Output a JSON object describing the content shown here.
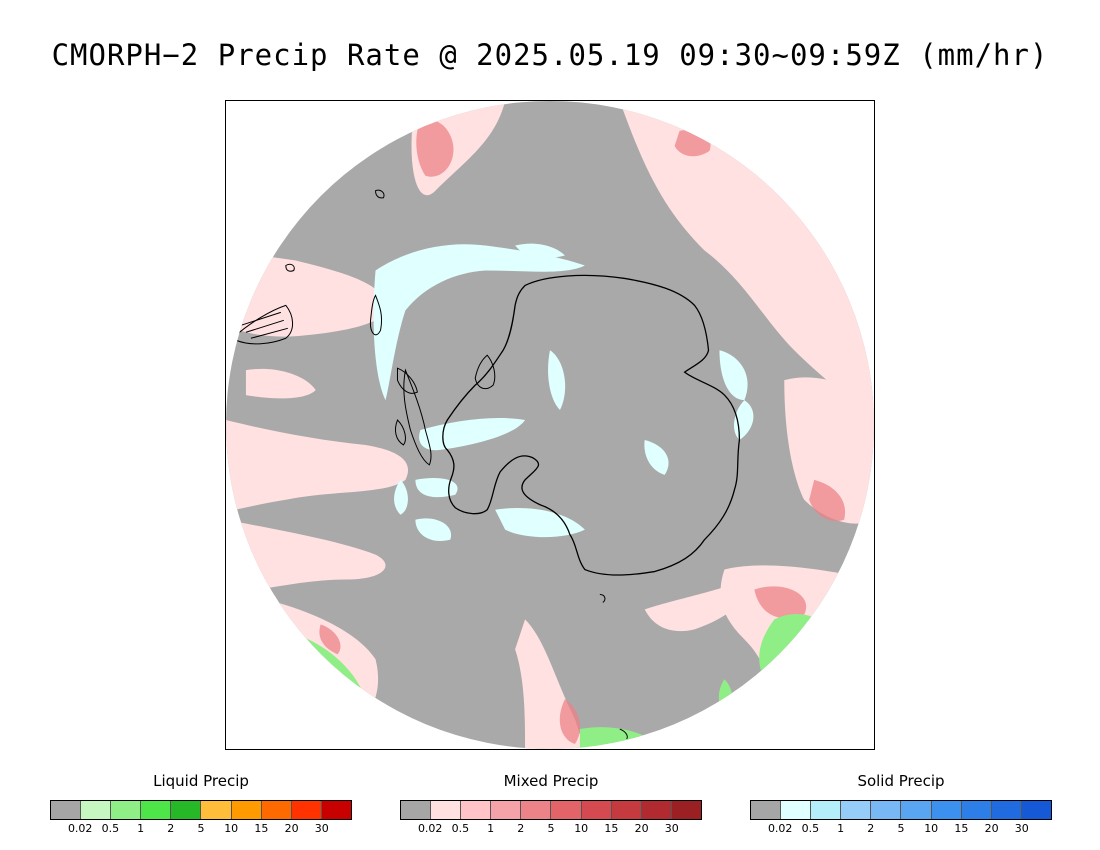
{
  "title": "CMORPH−2 Precip Rate @ 2025.05.19 09:30~09:59Z (mm/hr)",
  "map": {
    "projection": "south-polar-stereographic",
    "base_color": "#a9a9a9",
    "frame_color": "#000000",
    "coastline_color": "#000000"
  },
  "legends": [
    {
      "id": "liquid",
      "title": "Liquid Precip",
      "colors": [
        "#a6a6a6",
        "#c7f7c0",
        "#90ee86",
        "#4ee548",
        "#26b826",
        "#ffbe3a",
        "#ff9a00",
        "#ff6a00",
        "#ff3200",
        "#c80000"
      ],
      "ticks": [
        "0.02",
        "0.5",
        "1",
        "2",
        "5",
        "10",
        "15",
        "20",
        "30"
      ]
    },
    {
      "id": "mixed",
      "title": "Mixed Precip",
      "colors": [
        "#a6a6a6",
        "#ffe1e1",
        "#ffc3c8",
        "#f5a3a9",
        "#ec8388",
        "#e26468",
        "#d44a50",
        "#c53a3e",
        "#b02a30",
        "#9a2024"
      ],
      "ticks": [
        "0.02",
        "0.5",
        "1",
        "2",
        "5",
        "10",
        "15",
        "20",
        "30"
      ]
    },
    {
      "id": "solid",
      "title": "Solid Precip",
      "colors": [
        "#a6a6a6",
        "#e0ffff",
        "#b4eefb",
        "#96cdf8",
        "#78b8f5",
        "#5aa5f2",
        "#3c91ee",
        "#2e7ee8",
        "#216be0",
        "#1659d6"
      ],
      "ticks": [
        "0.02",
        "0.5",
        "1",
        "2",
        "5",
        "10",
        "15",
        "20",
        "30"
      ]
    }
  ]
}
